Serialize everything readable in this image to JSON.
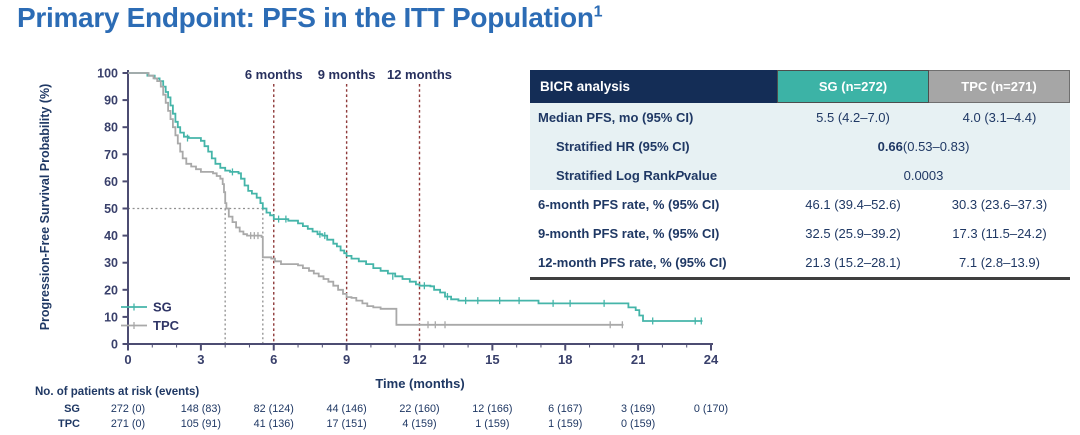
{
  "slide": {
    "title": "Primary Endpoint: PFS in the ITT Population",
    "title_superscript": "1"
  },
  "colors": {
    "title": "#2c6cb5",
    "navy_text": "#1f3864",
    "axis": "#4c4c72",
    "tick_label": "#39406b",
    "month_line": "#8f3a3a",
    "median_dotted": "#8f8f8f",
    "sg_teal": "#45b5a9",
    "tpc_gray": "#a9a9a9",
    "header_bg": "#142d56",
    "sg_header_bg": "#3cb3a6",
    "tpc_header_bg": "#a6a6a6",
    "shaded_row_bg": "#e7f1f3"
  },
  "chart_data": {
    "type": "line",
    "subtype": "kaplan_meier_step",
    "title": "",
    "xlabel": "Time (months)",
    "ylabel": "Progression-Free Survival Probability (%)",
    "xlim": [
      0,
      24
    ],
    "ylim": [
      0,
      100
    ],
    "x_major_ticks": [
      0,
      3,
      6,
      9,
      12,
      15,
      18,
      21,
      24
    ],
    "x_minor_tick_every": 1,
    "y_ticks": [
      0,
      10,
      20,
      30,
      40,
      50,
      60,
      70,
      80,
      90,
      100
    ],
    "grid": false,
    "legend_position": "lower-left-inside",
    "timepoint_annotations": [
      {
        "label": "6 months",
        "x": 6
      },
      {
        "label": "9 months",
        "x": 9
      },
      {
        "label": "12 months",
        "x": 12
      }
    ],
    "median_markers": {
      "y": 50,
      "x_values": [
        4.0,
        5.55
      ]
    },
    "series": [
      {
        "name": "SG",
        "color": "#45b5a9",
        "median_months": 5.5,
        "steps": [
          [
            0,
            100
          ],
          [
            0.8,
            99
          ],
          [
            1.1,
            98
          ],
          [
            1.3,
            97
          ],
          [
            1.45,
            95
          ],
          [
            1.55,
            93
          ],
          [
            1.65,
            91
          ],
          [
            1.75,
            88
          ],
          [
            1.85,
            85
          ],
          [
            1.95,
            82
          ],
          [
            2.05,
            80
          ],
          [
            2.15,
            78
          ],
          [
            2.3,
            76.5
          ],
          [
            2.5,
            76
          ],
          [
            3.0,
            75
          ],
          [
            3.15,
            73
          ],
          [
            3.3,
            71
          ],
          [
            3.45,
            68.5
          ],
          [
            3.6,
            66.5
          ],
          [
            3.8,
            65
          ],
          [
            4.0,
            64
          ],
          [
            4.2,
            63.5
          ],
          [
            4.55,
            63
          ],
          [
            4.65,
            61
          ],
          [
            4.8,
            58.5
          ],
          [
            4.95,
            56.5
          ],
          [
            5.1,
            55.5
          ],
          [
            5.3,
            54
          ],
          [
            5.45,
            52
          ],
          [
            5.55,
            50
          ],
          [
            5.7,
            48.5
          ],
          [
            5.85,
            47.5
          ],
          [
            6.0,
            46.1
          ],
          [
            6.6,
            45.5
          ],
          [
            7.0,
            44.5
          ],
          [
            7.2,
            43.5
          ],
          [
            7.4,
            42.5
          ],
          [
            7.6,
            41.5
          ],
          [
            7.8,
            40.5
          ],
          [
            8.0,
            40
          ],
          [
            8.2,
            38.5
          ],
          [
            8.45,
            37
          ],
          [
            8.6,
            36
          ],
          [
            8.75,
            34.5
          ],
          [
            8.9,
            33.5
          ],
          [
            9.0,
            32.5
          ],
          [
            9.2,
            31.5
          ],
          [
            9.5,
            30.5
          ],
          [
            9.8,
            29.5
          ],
          [
            10.1,
            28
          ],
          [
            10.4,
            27
          ],
          [
            10.7,
            26
          ],
          [
            11.0,
            25
          ],
          [
            11.3,
            24
          ],
          [
            11.6,
            23
          ],
          [
            11.85,
            22
          ],
          [
            12.0,
            21.5
          ],
          [
            12.45,
            21.3
          ],
          [
            12.6,
            20
          ],
          [
            12.85,
            19
          ],
          [
            13.05,
            17.5
          ],
          [
            13.3,
            16.5
          ],
          [
            13.6,
            16
          ],
          [
            16.9,
            15
          ],
          [
            20.6,
            13.5
          ],
          [
            20.9,
            12.5
          ],
          [
            21.05,
            10.5
          ],
          [
            21.2,
            8.5
          ],
          [
            23.65,
            8.5
          ]
        ],
        "censor_marks": [
          [
            2.45,
            76
          ],
          [
            4.3,
            63.5
          ],
          [
            6.2,
            46.1
          ],
          [
            6.5,
            46.1
          ],
          [
            7.9,
            40.5
          ],
          [
            8.1,
            40
          ],
          [
            10.9,
            25
          ],
          [
            12.2,
            21.5
          ],
          [
            13.15,
            17.5
          ],
          [
            13.9,
            16
          ],
          [
            14.4,
            16
          ],
          [
            15.3,
            16
          ],
          [
            16.1,
            16
          ],
          [
            17.5,
            15
          ],
          [
            18.2,
            15
          ],
          [
            19.6,
            15
          ],
          [
            21.6,
            8.5
          ],
          [
            23.35,
            8.5
          ],
          [
            23.6,
            8.5
          ]
        ]
      },
      {
        "name": "TPC",
        "color": "#a9a9a9",
        "median_months": 4.0,
        "steps": [
          [
            0,
            100
          ],
          [
            0.85,
            99
          ],
          [
            1.05,
            98
          ],
          [
            1.2,
            97
          ],
          [
            1.35,
            95
          ],
          [
            1.45,
            92
          ],
          [
            1.55,
            89
          ],
          [
            1.65,
            86
          ],
          [
            1.75,
            83
          ],
          [
            1.85,
            80
          ],
          [
            1.95,
            77
          ],
          [
            2.05,
            74
          ],
          [
            2.15,
            71
          ],
          [
            2.25,
            68.5
          ],
          [
            2.4,
            66.5
          ],
          [
            2.6,
            65.5
          ],
          [
            2.8,
            64.5
          ],
          [
            3.0,
            63.5
          ],
          [
            3.5,
            63
          ],
          [
            3.65,
            62
          ],
          [
            3.8,
            61
          ],
          [
            3.9,
            59
          ],
          [
            3.95,
            56
          ],
          [
            4.0,
            52
          ],
          [
            4.05,
            50
          ],
          [
            4.15,
            47
          ],
          [
            4.3,
            45
          ],
          [
            4.45,
            43
          ],
          [
            4.6,
            41.5
          ],
          [
            4.75,
            40.5
          ],
          [
            4.9,
            40
          ],
          [
            5.5,
            39.5
          ],
          [
            5.55,
            32
          ],
          [
            5.9,
            31.5
          ],
          [
            6.05,
            30.5
          ],
          [
            6.3,
            29.5
          ],
          [
            7.0,
            29
          ],
          [
            7.2,
            28
          ],
          [
            7.45,
            27
          ],
          [
            7.65,
            26
          ],
          [
            7.85,
            25
          ],
          [
            8.05,
            24
          ],
          [
            8.25,
            23
          ],
          [
            8.45,
            21.5
          ],
          [
            8.65,
            20
          ],
          [
            8.85,
            18.5
          ],
          [
            9.0,
            17.3
          ],
          [
            9.2,
            17
          ],
          [
            9.4,
            16
          ],
          [
            9.65,
            15
          ],
          [
            9.85,
            14
          ],
          [
            10.1,
            13.5
          ],
          [
            10.4,
            13
          ],
          [
            11.05,
            7.1
          ],
          [
            20.4,
            7.1
          ]
        ],
        "censor_marks": [
          [
            5.05,
            40
          ],
          [
            5.2,
            40
          ],
          [
            5.35,
            40
          ],
          [
            12.35,
            7.1
          ],
          [
            12.65,
            7.1
          ],
          [
            13.05,
            7.1
          ],
          [
            19.85,
            7.1
          ],
          [
            20.35,
            7.1
          ]
        ]
      }
    ]
  },
  "risk_table": {
    "title": "No. of patients at risk (events)",
    "timepoints": [
      0,
      3,
      6,
      9,
      12,
      15,
      18,
      21,
      24
    ],
    "rows": [
      {
        "label": "SG",
        "values": [
          "272 (0)",
          "148 (83)",
          "82 (124)",
          "44 (146)",
          "22 (160)",
          "12 (166)",
          "6 (167)",
          "3 (169)",
          "0 (170)"
        ]
      },
      {
        "label": "TPC",
        "values": [
          "271 (0)",
          "105 (91)",
          "41 (136)",
          "17 (151)",
          "4 (159)",
          "1 (159)",
          "1 (159)",
          "0 (159)"
        ]
      }
    ]
  },
  "results_table": {
    "header": {
      "label": "BICR analysis",
      "sg": "SG (n=272)",
      "tpc": "TPC (n=271)"
    },
    "rows": [
      {
        "label_parts": [
          {
            "t": "Median PFS, mo (95% CI)"
          }
        ],
        "values": [
          "5.5 (4.2–7.0)",
          "4.0 (3.1–4.4)"
        ],
        "shaded": true,
        "indent": false
      },
      {
        "label_parts": [
          {
            "t": "Stratified HR (95% CI)"
          }
        ],
        "span_parts": [
          {
            "t": "0.66",
            "bold": true
          },
          {
            "t": " (0.53–0.83)"
          }
        ],
        "shaded": true,
        "indent": true
      },
      {
        "label_parts": [
          {
            "t": "Stratified Log Rank "
          },
          {
            "t": "P",
            "italic": true
          },
          {
            "t": " value"
          }
        ],
        "span_parts": [
          {
            "t": "0.0003"
          }
        ],
        "shaded": true,
        "indent": true
      },
      {
        "label_parts": [
          {
            "t": "6-month PFS rate, % (95% CI)"
          }
        ],
        "values": [
          "46.1 (39.4–52.6)",
          "30.3 (23.6–37.3)"
        ],
        "shaded": false,
        "indent": false
      },
      {
        "label_parts": [
          {
            "t": "9-month PFS rate, % (95% CI)"
          }
        ],
        "values": [
          "32.5 (25.9–39.2)",
          "17.3 (11.5–24.2)"
        ],
        "shaded": false,
        "indent": false
      },
      {
        "label_parts": [
          {
            "t": "12-month PFS rate, % (95% CI)"
          }
        ],
        "values": [
          "21.3 (15.2–28.1)",
          "7.1 (2.8–13.9)"
        ],
        "shaded": false,
        "indent": false
      }
    ]
  }
}
